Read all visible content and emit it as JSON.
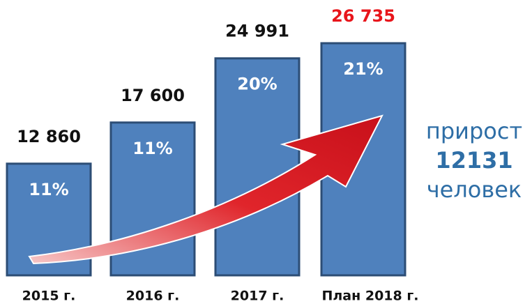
{
  "chart_data": {
    "type": "bar",
    "categories": [
      "2015 г.",
      "2016 г.",
      "2017 г.",
      "План 2018 г."
    ],
    "values": [
      12860,
      17600,
      24991,
      26735
    ],
    "value_labels": [
      "12 860",
      "17 600",
      "24 991",
      "26 735"
    ],
    "value_label_colors": [
      "#111111",
      "#111111",
      "#111111",
      "#e8151b"
    ],
    "percent_labels": [
      "11%",
      "11%",
      "20%",
      "21%"
    ],
    "color": "#4f81bd",
    "annotation": {
      "line1": "прирост",
      "number": "12131",
      "line2": "человек",
      "color": "#2e6ea6"
    }
  }
}
